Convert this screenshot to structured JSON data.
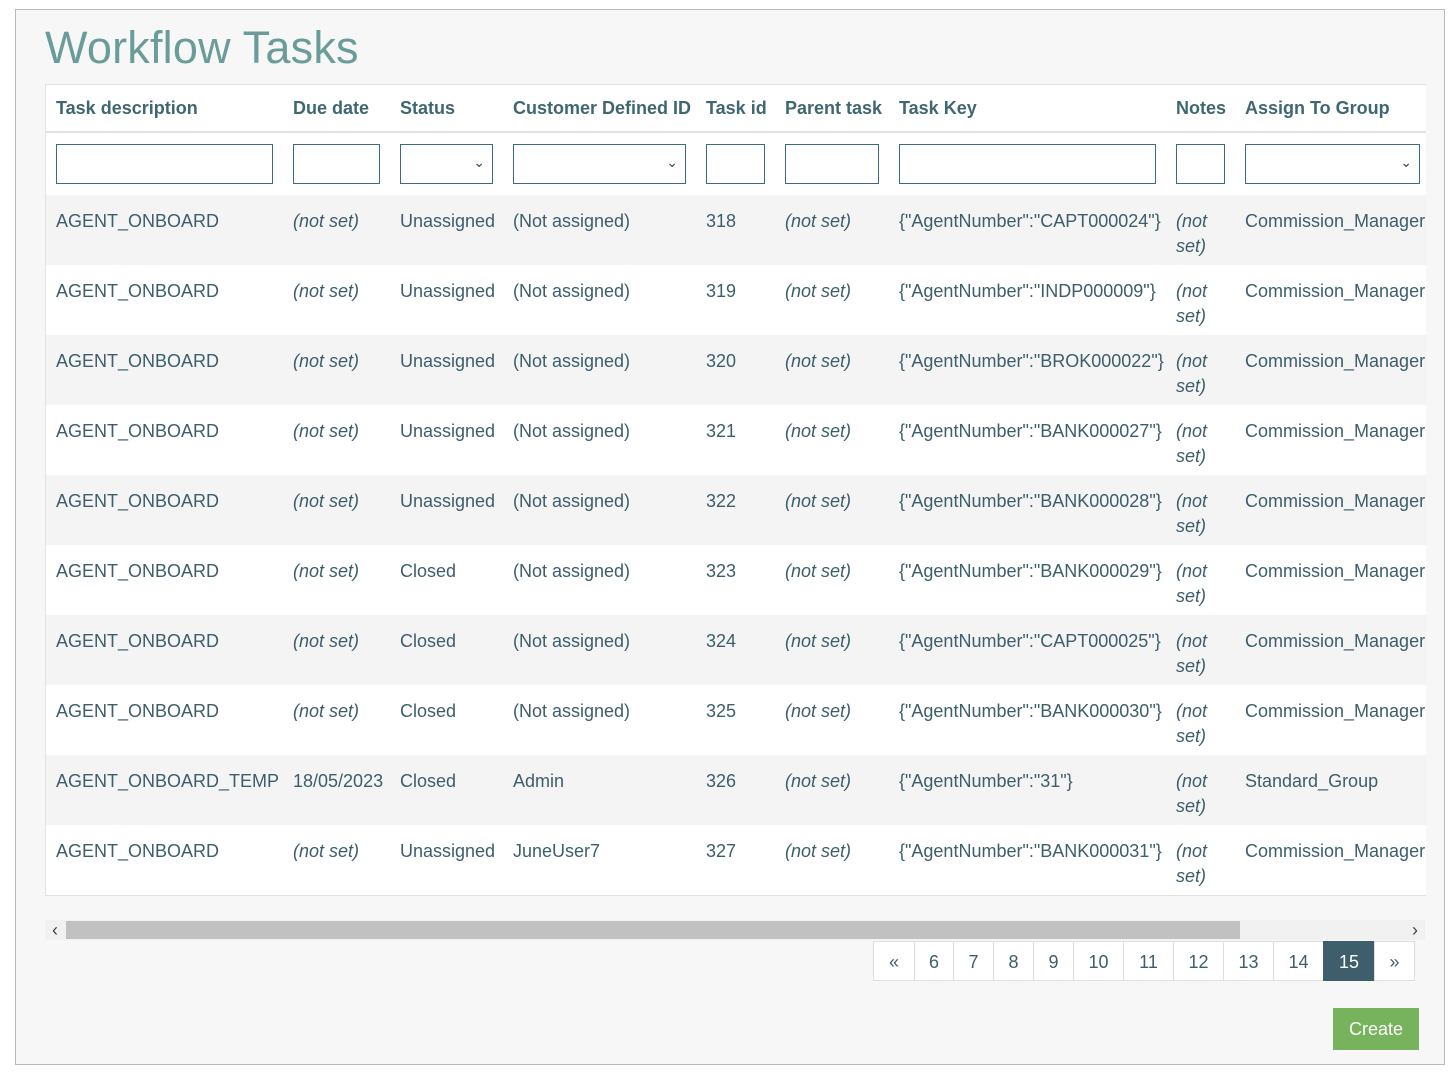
{
  "page": {
    "title": "Workflow Tasks"
  },
  "table": {
    "headers": [
      "Task description",
      "Due date",
      "Status",
      "Customer Defined ID",
      "Task id",
      "Parent task",
      "Task Key",
      "Notes",
      "Assign To Group"
    ],
    "rows": [
      {
        "desc": "AGENT_ONBOARD",
        "due": "(not set)",
        "status": "Unassigned",
        "cust": "(Not assigned)",
        "id": "318",
        "parent": "(not set)",
        "key": "{\"AgentNumber\":\"CAPT000024\"}",
        "notes": "(not set)",
        "group": "Commission_Manager"
      },
      {
        "desc": "AGENT_ONBOARD",
        "due": "(not set)",
        "status": "Unassigned",
        "cust": "(Not assigned)",
        "id": "319",
        "parent": "(not set)",
        "key": "{\"AgentNumber\":\"INDP000009\"}",
        "notes": "(not set)",
        "group": "Commission_Manager"
      },
      {
        "desc": "AGENT_ONBOARD",
        "due": "(not set)",
        "status": "Unassigned",
        "cust": "(Not assigned)",
        "id": "320",
        "parent": "(not set)",
        "key": "{\"AgentNumber\":\"BROK000022\"}",
        "notes": "(not set)",
        "group": "Commission_Manager"
      },
      {
        "desc": "AGENT_ONBOARD",
        "due": "(not set)",
        "status": "Unassigned",
        "cust": "(Not assigned)",
        "id": "321",
        "parent": "(not set)",
        "key": "{\"AgentNumber\":\"BANK000027\"}",
        "notes": "(not set)",
        "group": "Commission_Manager"
      },
      {
        "desc": "AGENT_ONBOARD",
        "due": "(not set)",
        "status": "Unassigned",
        "cust": "(Not assigned)",
        "id": "322",
        "parent": "(not set)",
        "key": "{\"AgentNumber\":\"BANK000028\"}",
        "notes": "(not set)",
        "group": "Commission_Manager"
      },
      {
        "desc": "AGENT_ONBOARD",
        "due": "(not set)",
        "status": "Closed",
        "cust": "(Not assigned)",
        "id": "323",
        "parent": "(not set)",
        "key": "{\"AgentNumber\":\"BANK000029\"}",
        "notes": "(not set)",
        "group": "Commission_Manager"
      },
      {
        "desc": "AGENT_ONBOARD",
        "due": "(not set)",
        "status": "Closed",
        "cust": "(Not assigned)",
        "id": "324",
        "parent": "(not set)",
        "key": "{\"AgentNumber\":\"CAPT000025\"}",
        "notes": "(not set)",
        "group": "Commission_Manager"
      },
      {
        "desc": "AGENT_ONBOARD",
        "due": "(not set)",
        "status": "Closed",
        "cust": "(Not assigned)",
        "id": "325",
        "parent": "(not set)",
        "key": "{\"AgentNumber\":\"BANK000030\"}",
        "notes": "(not set)",
        "group": "Commission_Manager"
      },
      {
        "desc": "AGENT_ONBOARD_TEMP",
        "due": "18/05/2023",
        "status": "Closed",
        "cust": "Admin",
        "id": "326",
        "parent": "(not set)",
        "key": "{\"AgentNumber\":\"31\"}",
        "notes": "(not set)",
        "group": "Standard_Group"
      },
      {
        "desc": "AGENT_ONBOARD",
        "due": "(not set)",
        "status": "Unassigned",
        "cust": "JuneUser7",
        "id": "327",
        "parent": "(not set)",
        "key": "{\"AgentNumber\":\"BANK000031\"}",
        "notes": "(not set)",
        "group": "Commission_Manager"
      }
    ]
  },
  "pagination": {
    "prev": "«",
    "next": "»",
    "pages": [
      "6",
      "7",
      "8",
      "9",
      "10",
      "11",
      "12",
      "13",
      "14",
      "15"
    ],
    "active": "15"
  },
  "actions": {
    "create_label": "Create"
  },
  "icons": {
    "select_chevron": "chevron-down-icon",
    "scroll_left": "chevron-left-icon",
    "scroll_right": "chevron-right-icon"
  },
  "colors": {
    "title": "#6a9c9a",
    "text": "#3d5e6a",
    "not_set": "#c9504d",
    "not_assigned": "#8a6d3b",
    "active_page": "#3d5e6a",
    "create": "#77b25d"
  }
}
